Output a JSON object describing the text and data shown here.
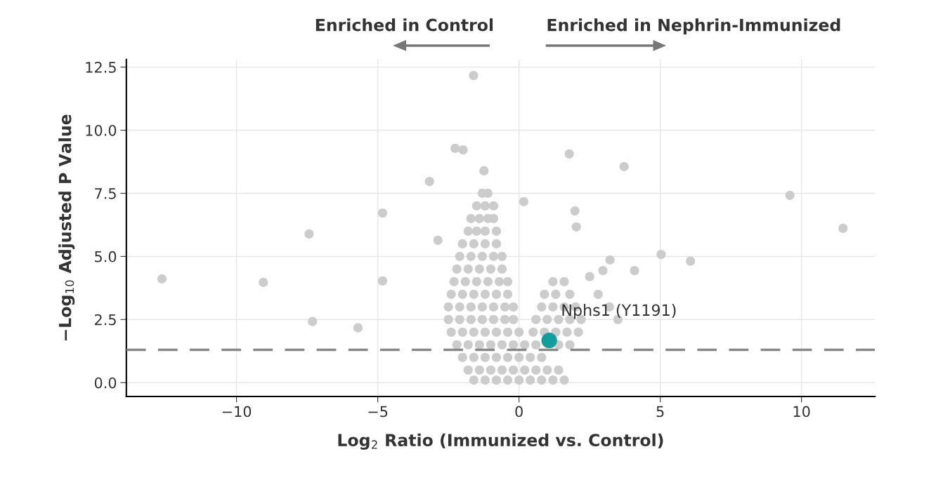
{
  "chart_data": {
    "type": "scatter",
    "xlabel": "Log$_{2}$ Ratio (Immunized vs. Control)",
    "ylabel": "−Log$_{10}$ Adjusted P Value",
    "xlim": [
      -13.9,
      12.6
    ],
    "ylim": [
      -0.55,
      12.8
    ],
    "xticks": [
      {
        "value": -10,
        "label": "−10"
      },
      {
        "value": -5,
        "label": "−5"
      },
      0,
      5,
      10
    ],
    "yticks": [
      {
        "value": 0,
        "label": "0.0"
      },
      2.5,
      {
        "value": 5,
        "label": "5.0"
      },
      7.5,
      {
        "value": 10,
        "label": "10.0"
      },
      12.5
    ],
    "grid": true,
    "marker": "circle",
    "series": [
      {
        "color": "#cccccc",
        "x": [
          -12.64,
          -9.05,
          -7.43,
          -4.83,
          -7.31,
          -5.7,
          -4.83,
          -1.61,
          -1.98,
          -2.26,
          -1.24,
          -3.17,
          -2.87,
          1.78,
          3.72,
          0.17,
          2.03,
          5.03,
          6.07,
          9.59,
          11.47,
          1.98,
          3.22,
          4.09,
          2.97,
          -1.3,
          -1.1,
          -1.5,
          -1.2,
          -0.9,
          -1.7,
          -1.4,
          -1.1,
          -0.9,
          -1.8,
          -1.5,
          -1.2,
          -0.8,
          -2.0,
          -1.6,
          -1.2,
          -0.8,
          -2.1,
          -1.7,
          -1.3,
          -0.9,
          -0.6,
          -2.2,
          -1.8,
          -1.4,
          -1.0,
          -0.6,
          -2.3,
          -1.9,
          -1.5,
          -1.1,
          -0.7,
          -0.4,
          -2.4,
          -2.0,
          -1.6,
          -1.2,
          -0.8,
          -0.4,
          -2.5,
          -2.1,
          -1.7,
          -1.3,
          -0.9,
          -0.5,
          -0.2,
          -2.5,
          -2.1,
          -1.7,
          -1.3,
          -0.9,
          -0.5,
          -0.2,
          -2.4,
          -2.0,
          -1.6,
          -1.2,
          -0.8,
          -0.4,
          0.0,
          -2.2,
          -1.8,
          -1.4,
          -1.0,
          -0.6,
          -0.2,
          0.2,
          -2.0,
          -1.6,
          -1.2,
          -0.8,
          -0.4,
          0.0,
          0.4,
          0.8,
          -1.8,
          -1.4,
          -1.0,
          -0.6,
          -0.2,
          0.2,
          0.6,
          1.0,
          1.4,
          -1.6,
          -1.2,
          -0.8,
          -0.4,
          0.0,
          0.4,
          0.8,
          1.2,
          1.6,
          1.2,
          1.6,
          0.9,
          1.3,
          1.8,
          0.8,
          1.2,
          1.6,
          2.0,
          0.6,
          1.0,
          1.4,
          1.8,
          2.2,
          0.5,
          0.9,
          1.3,
          1.7,
          2.1,
          0.6,
          1.4,
          1.8,
          2.8,
          3.2,
          2.5,
          3.5
        ],
        "values": [
          4.11,
          3.97,
          5.89,
          6.72,
          2.42,
          2.17,
          4.03,
          12.17,
          9.22,
          9.28,
          8.39,
          7.97,
          5.64,
          9.06,
          8.56,
          7.17,
          6.17,
          5.08,
          4.81,
          7.42,
          6.11,
          6.8,
          4.86,
          4.44,
          4.44,
          7.5,
          7.5,
          7.0,
          7.0,
          7.0,
          6.5,
          6.5,
          6.5,
          6.5,
          6.0,
          6.0,
          6.0,
          6.0,
          5.5,
          5.5,
          5.5,
          5.5,
          5.0,
          5.0,
          5.0,
          5.0,
          5.0,
          4.5,
          4.5,
          4.5,
          4.5,
          4.5,
          4.0,
          4.0,
          4.0,
          4.0,
          4.0,
          4.0,
          3.5,
          3.5,
          3.5,
          3.5,
          3.5,
          3.5,
          3.0,
          3.0,
          3.0,
          3.0,
          3.0,
          3.0,
          3.0,
          2.5,
          2.5,
          2.5,
          2.5,
          2.5,
          2.5,
          2.5,
          2.0,
          2.0,
          2.0,
          2.0,
          2.0,
          2.0,
          2.0,
          1.5,
          1.5,
          1.5,
          1.5,
          1.5,
          1.5,
          1.5,
          1.0,
          1.0,
          1.0,
          1.0,
          1.0,
          1.0,
          1.0,
          1.0,
          0.5,
          0.5,
          0.5,
          0.5,
          0.5,
          0.5,
          0.5,
          0.5,
          0.5,
          0.1,
          0.1,
          0.1,
          0.1,
          0.1,
          0.1,
          0.1,
          0.1,
          0.1,
          4.0,
          4.0,
          3.5,
          3.5,
          3.5,
          3.0,
          3.0,
          3.0,
          3.0,
          2.5,
          2.5,
          2.5,
          2.5,
          2.5,
          2.0,
          2.0,
          2.0,
          2.0,
          2.0,
          1.5,
          1.5,
          1.5,
          3.5,
          3.0,
          4.2,
          2.5
        ]
      },
      {
        "color": "#119e9c",
        "x": [
          1.07
        ],
        "values": [
          1.67
        ]
      }
    ],
    "ref_lines": [
      {
        "axis": "y",
        "value": 1.3,
        "color": "#888888",
        "line_style": "dashed"
      }
    ],
    "annotations": [
      {
        "text": "Nphs1 (Y1191)",
        "x": 1.07,
        "y": 1.67
      },
      "Enriched in Control",
      "Enriched in Nephrin-Immunized"
    ]
  }
}
